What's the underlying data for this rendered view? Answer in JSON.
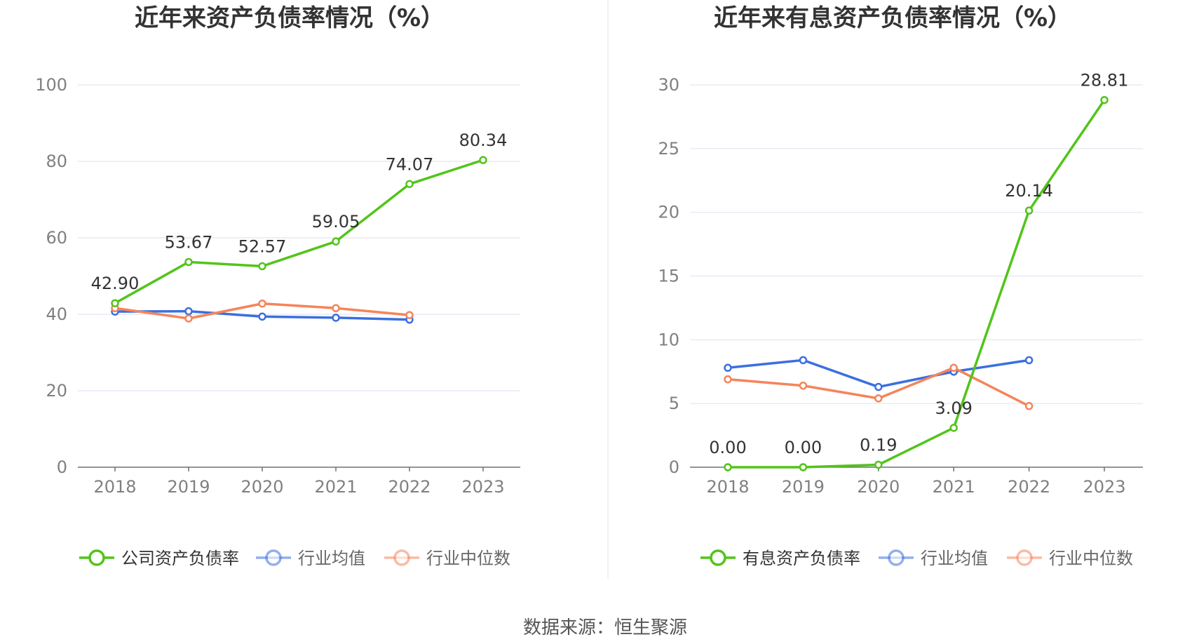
{
  "chart_data": [
    {
      "type": "line",
      "title": "近年来资产负债率情况（%）",
      "categories": [
        "2018",
        "2019",
        "2020",
        "2021",
        "2022",
        "2023"
      ],
      "ylim": [
        0,
        100
      ],
      "yticks": [
        0,
        20,
        40,
        60,
        80,
        100
      ],
      "grid": true,
      "legend_position": "bottom",
      "series": [
        {
          "name": "公司资产负债率",
          "color": "#52c41a",
          "labeled": true,
          "values": [
            42.9,
            53.67,
            52.57,
            59.05,
            74.07,
            80.34
          ],
          "labels": [
            "42.90",
            "53.67",
            "52.57",
            "59.05",
            "74.07",
            "80.34"
          ]
        },
        {
          "name": "行业均值",
          "color": "#3b6fe0",
          "labeled": false,
          "values": [
            40.7,
            40.8,
            39.4,
            39.1,
            38.6,
            null
          ]
        },
        {
          "name": "行业中位数",
          "color": "#f5845a",
          "labeled": false,
          "values": [
            41.6,
            38.9,
            42.8,
            41.6,
            39.8,
            null
          ]
        }
      ]
    },
    {
      "type": "line",
      "title": "近年来有息资产负债率情况（%）",
      "categories": [
        "2018",
        "2019",
        "2020",
        "2021",
        "2022",
        "2023"
      ],
      "ylim": [
        0,
        30
      ],
      "yticks": [
        0,
        5,
        10,
        15,
        20,
        25,
        30
      ],
      "grid": true,
      "legend_position": "bottom",
      "series": [
        {
          "name": "有息资产负债率",
          "color": "#52c41a",
          "labeled": true,
          "values": [
            0.0,
            0.0,
            0.19,
            3.09,
            20.14,
            28.81
          ],
          "labels": [
            "0.00",
            "0.00",
            "0.19",
            "3.09",
            "20.14",
            "28.81"
          ]
        },
        {
          "name": "行业均值",
          "color": "#3b6fe0",
          "labeled": false,
          "values": [
            7.8,
            8.4,
            6.3,
            7.5,
            8.4,
            null
          ]
        },
        {
          "name": "行业中位数",
          "color": "#f5845a",
          "labeled": false,
          "values": [
            6.9,
            6.4,
            5.4,
            7.8,
            4.8,
            null
          ]
        }
      ]
    }
  ],
  "source": "数据来源：恒生聚源",
  "colors": {
    "grid": "#e0e6f1",
    "axis": "#6e7079",
    "divider": "#eeeeee",
    "legend_inactive": "#666666"
  }
}
